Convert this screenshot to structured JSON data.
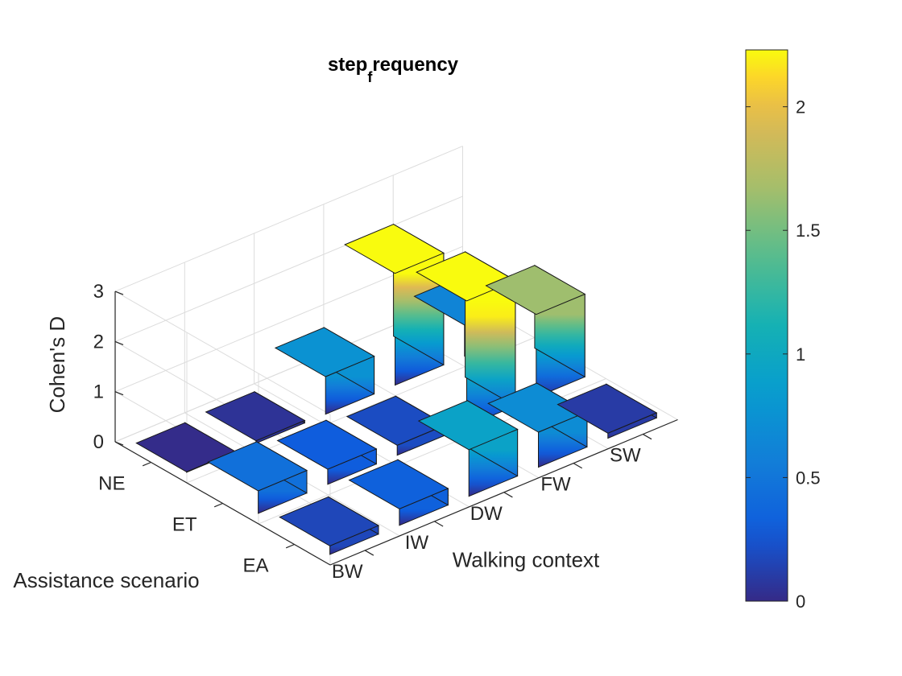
{
  "chart_data": {
    "type": "bar3d",
    "title": "step",
    "title_subscript": "f",
    "title_suffix": "requency",
    "xlabel": "Walking context",
    "ylabel": "Assistance scenario",
    "zlabel": "Cohen's D",
    "x_categories": [
      "BW",
      "IW",
      "DW",
      "FW",
      "SW"
    ],
    "y_categories": [
      "NE",
      "ET",
      "EA"
    ],
    "zlim": [
      0,
      3
    ],
    "z_ticks": [
      "0",
      "1",
      "2",
      "3"
    ],
    "values": [
      [
        0.01,
        0.05,
        0.75,
        2.23,
        0.62
      ],
      [
        0.45,
        0.3,
        0.2,
        2.5,
        1.65
      ],
      [
        0.17,
        0.33,
        0.93,
        0.7,
        0.1
      ]
    ],
    "colorbar": {
      "range": [
        0,
        2.23
      ],
      "ticks": [
        "0",
        "0.5",
        "1",
        "1.5",
        "2"
      ]
    },
    "grid": true
  }
}
